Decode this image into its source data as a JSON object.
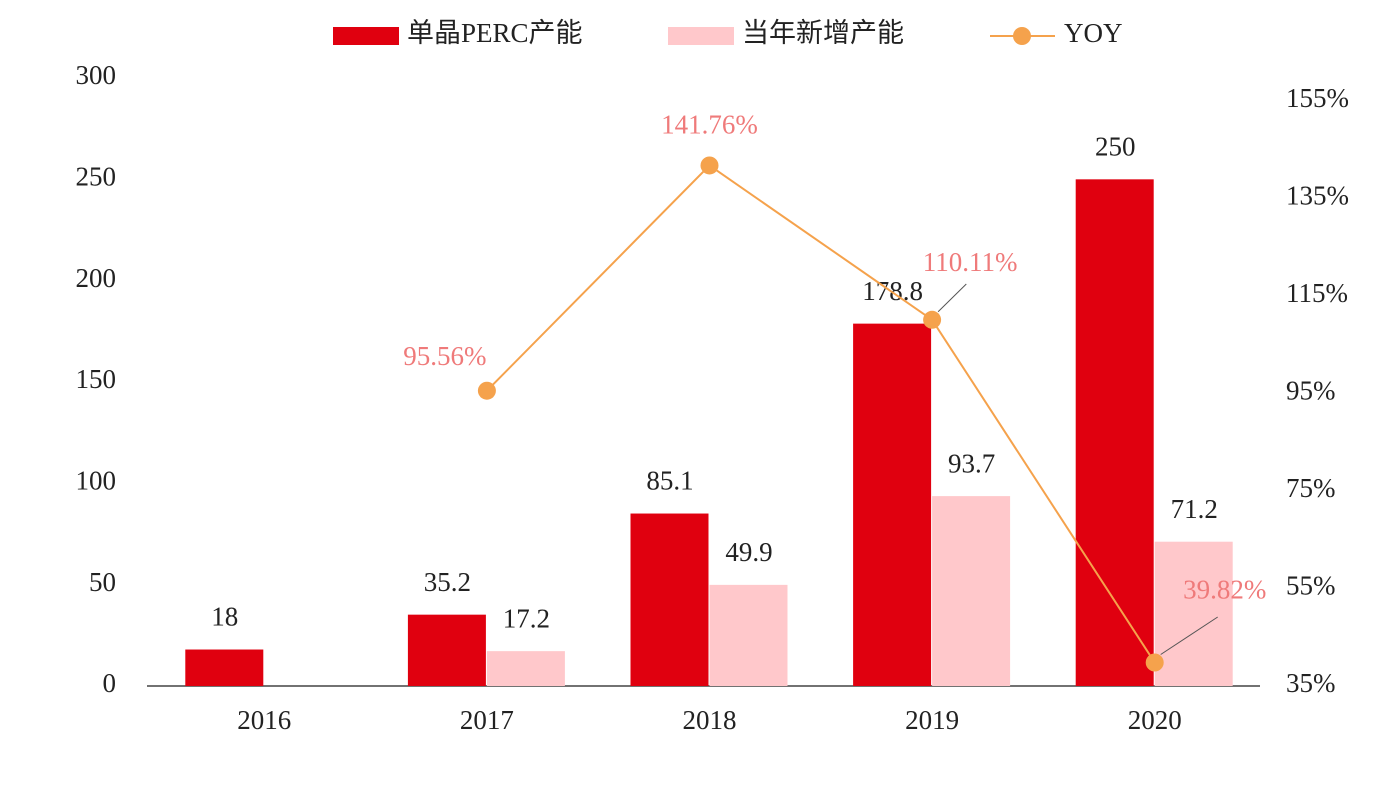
{
  "chart_data": {
    "type": "bar",
    "categories": [
      "2016",
      "2017",
      "2018",
      "2019",
      "2020"
    ],
    "series": [
      {
        "name": "单晶PERC产能",
        "color": "#e0000f",
        "values": [
          18,
          35.2,
          85.1,
          178.8,
          250
        ]
      },
      {
        "name": "当年新增产能",
        "color": "#ffc8cb",
        "values": [
          null,
          17.2,
          49.9,
          93.7,
          71.2
        ]
      },
      {
        "name": "YOY",
        "type": "line",
        "axis": "y2",
        "color": "#f5a24c",
        "label_color": "#ef7a7a",
        "values": [
          null,
          95.56,
          141.76,
          110.11,
          39.82
        ],
        "value_labels": [
          null,
          "95.56%",
          "141.76%",
          "110.11%",
          "39.82%"
        ]
      }
    ],
    "ylim": [
      0,
      300
    ],
    "yticks": [
      0,
      50,
      100,
      150,
      200,
      250,
      300
    ],
    "y2lim": [
      35,
      159.7
    ],
    "y2ticks": [
      {
        "value": 35,
        "label": "35%"
      },
      {
        "value": 55,
        "label": "55%"
      },
      {
        "value": 75,
        "label": "75%"
      },
      {
        "value": 95,
        "label": "95%"
      },
      {
        "value": 115,
        "label": "115%"
      },
      {
        "value": 135,
        "label": "135%"
      },
      {
        "value": 155,
        "label": "155%"
      }
    ],
    "legend": "top"
  }
}
